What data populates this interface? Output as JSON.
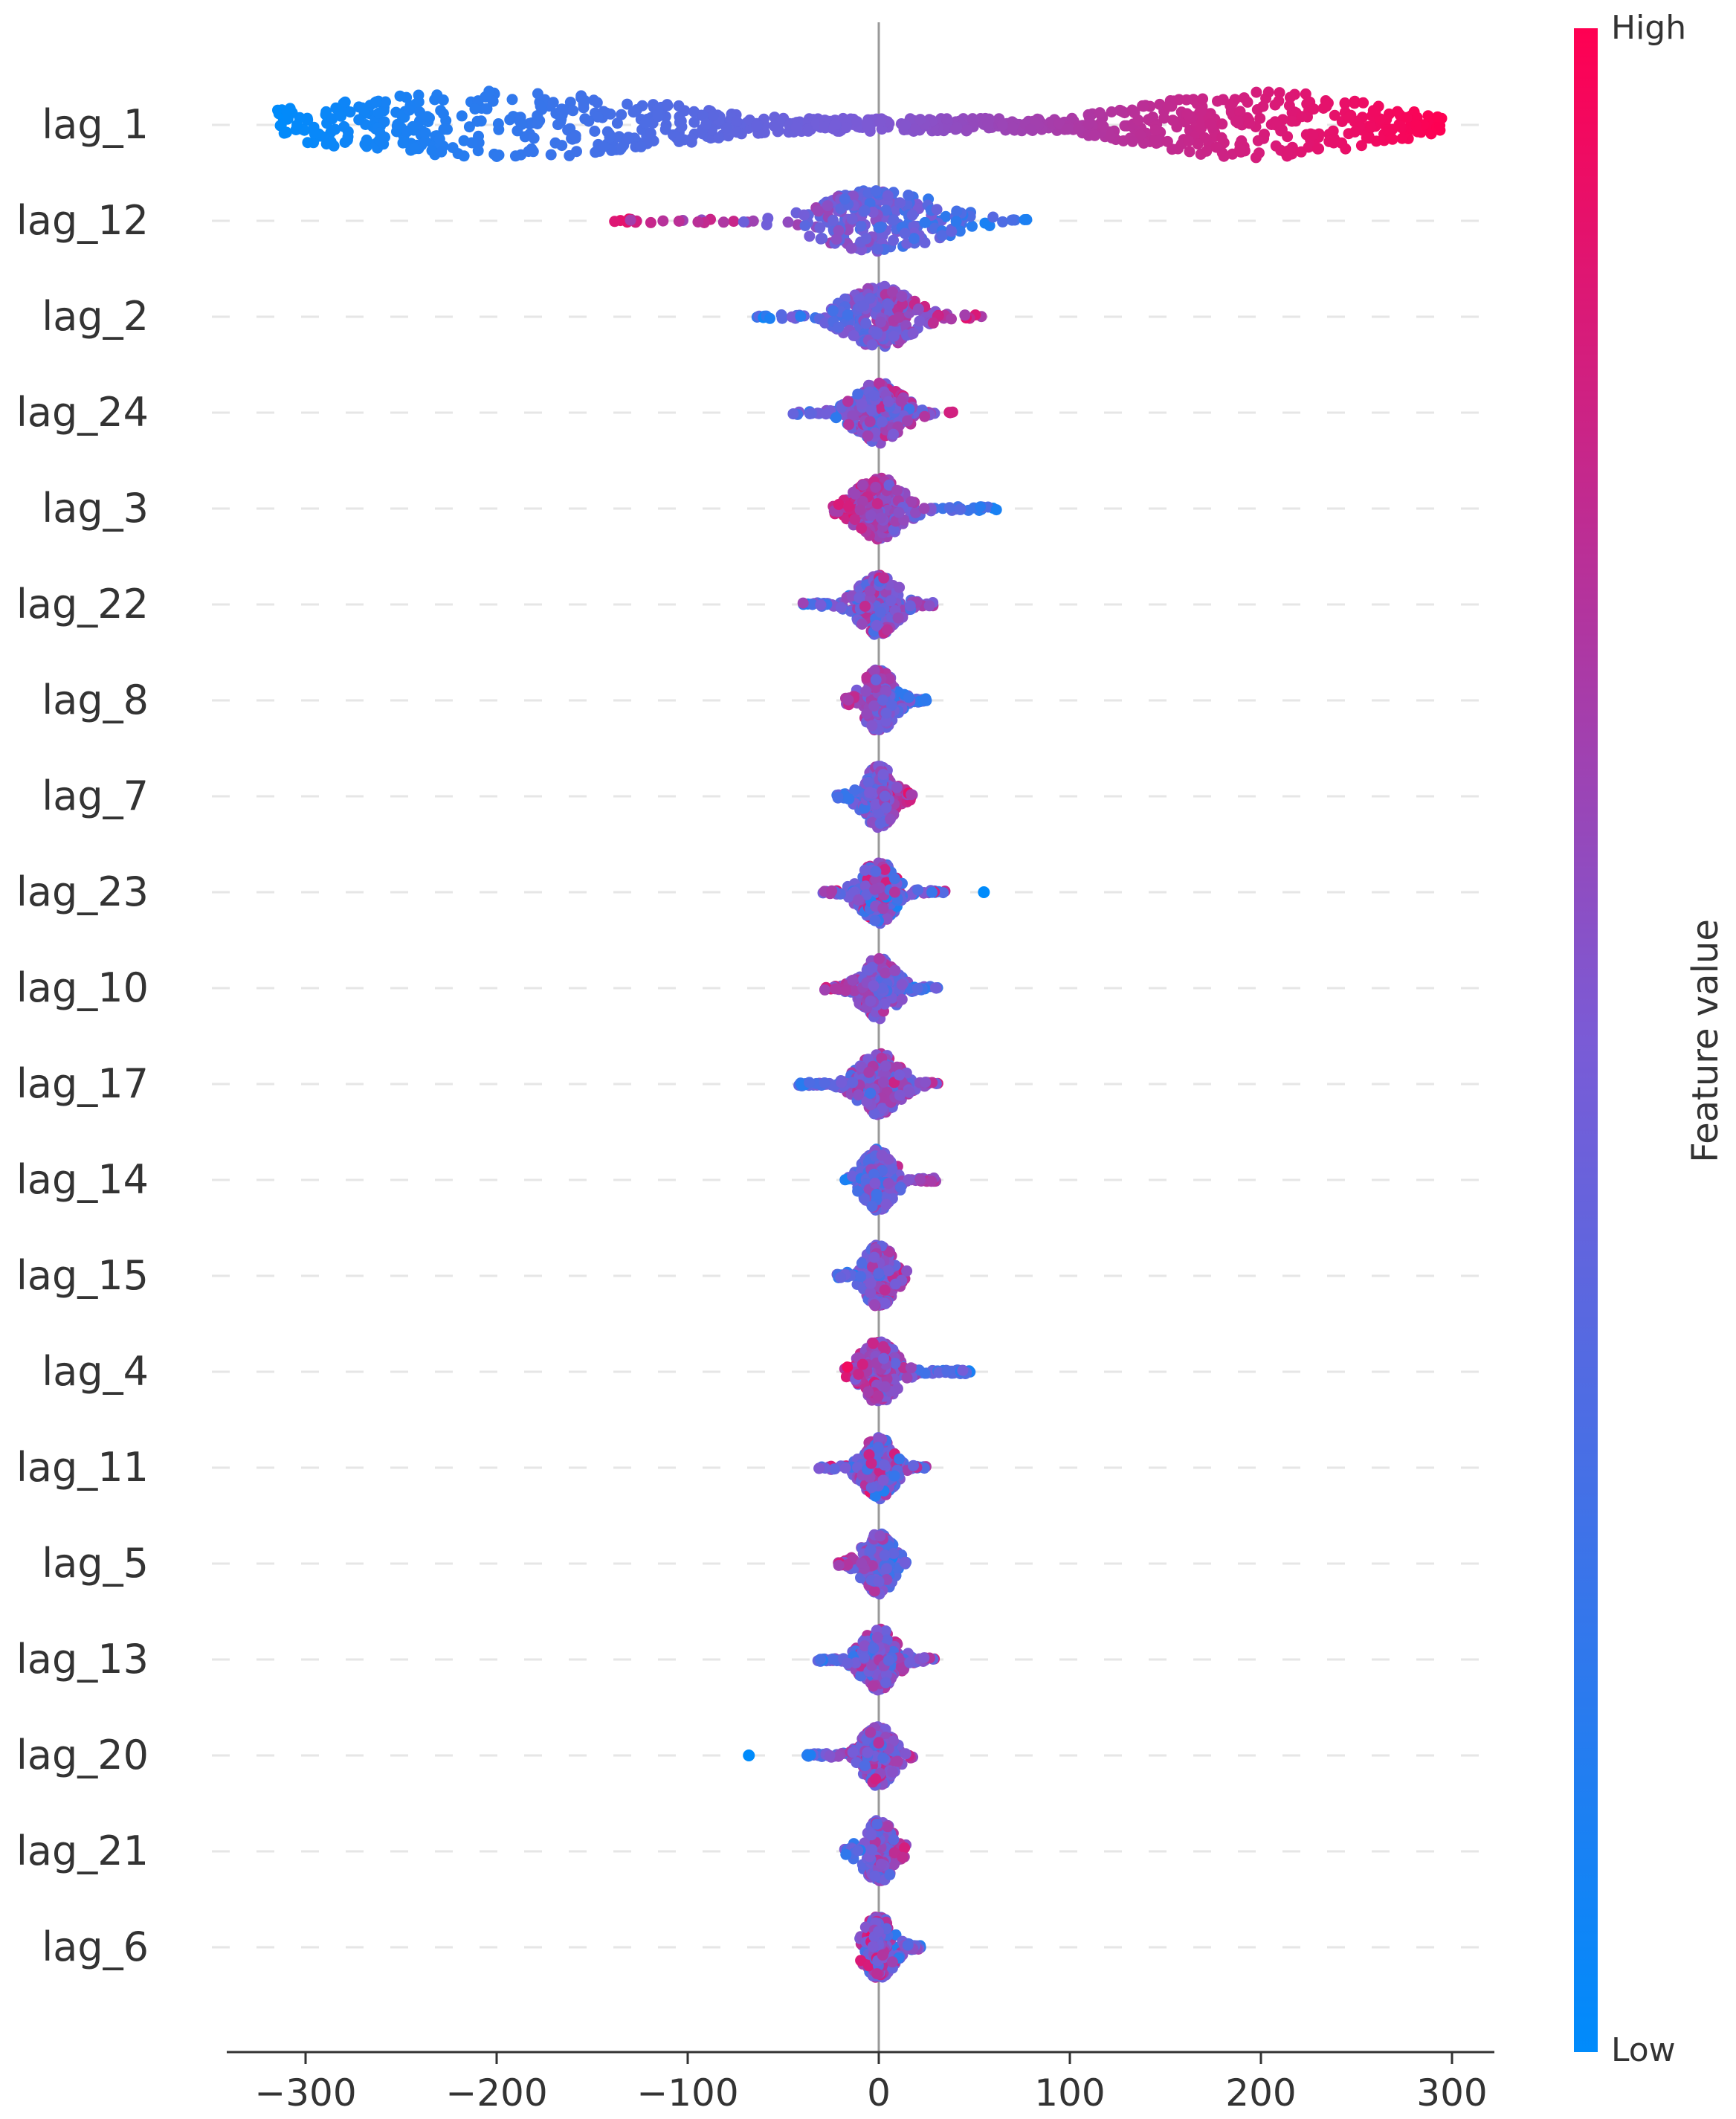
{
  "chart_data": {
    "type": "scatter",
    "subtype": "shap-beeswarm",
    "x": {
      "range": [
        -345,
        325
      ],
      "ticks": [
        -300,
        -200,
        -100,
        0,
        100,
        200,
        300
      ],
      "tick_labels": [
        "−300",
        "−200",
        "−100",
        "0",
        "100",
        "200",
        "300"
      ],
      "label": ""
    },
    "colorbar": {
      "label": "Feature value",
      "high_label": "High",
      "low_label": "Low",
      "low_color": "#008bfb",
      "high_color": "#ff0052"
    },
    "features": [
      {
        "name": "lag_1",
        "min": -315,
        "max": 295,
        "corr": 1.0,
        "outliers": []
      },
      {
        "name": "lag_12",
        "min": -140,
        "max": 78,
        "corr": -0.9,
        "outliers": []
      },
      {
        "name": "lag_2",
        "min": -65,
        "max": 55,
        "corr": 0.85,
        "outliers": []
      },
      {
        "name": "lag_24",
        "min": -45,
        "max": 40,
        "corr": 0.5,
        "outliers": []
      },
      {
        "name": "lag_3",
        "min": -25,
        "max": 62,
        "corr": -0.85,
        "outliers": []
      },
      {
        "name": "lag_22",
        "min": -40,
        "max": 30,
        "corr": 0.4,
        "outliers": []
      },
      {
        "name": "lag_8",
        "min": -18,
        "max": 25,
        "corr": -0.6,
        "outliers": []
      },
      {
        "name": "lag_7",
        "min": -22,
        "max": 18,
        "corr": 0.8,
        "outliers": []
      },
      {
        "name": "lag_23",
        "min": -30,
        "max": 35,
        "corr": -0.2,
        "outliers": [
          55
        ]
      },
      {
        "name": "lag_10",
        "min": -30,
        "max": 32,
        "corr": -0.6,
        "outliers": []
      },
      {
        "name": "lag_17",
        "min": -42,
        "max": 32,
        "corr": 0.6,
        "outliers": []
      },
      {
        "name": "lag_14",
        "min": -18,
        "max": 30,
        "corr": 0.6,
        "outliers": []
      },
      {
        "name": "lag_15",
        "min": -22,
        "max": 15,
        "corr": 0.6,
        "outliers": []
      },
      {
        "name": "lag_4",
        "min": -18,
        "max": 48,
        "corr": -0.7,
        "outliers": []
      },
      {
        "name": "lag_11",
        "min": -32,
        "max": 25,
        "corr": -0.3,
        "outliers": []
      },
      {
        "name": "lag_5",
        "min": -22,
        "max": 15,
        "corr": -0.6,
        "outliers": []
      },
      {
        "name": "lag_13",
        "min": -32,
        "max": 30,
        "corr": 0.5,
        "outliers": []
      },
      {
        "name": "lag_20",
        "min": -38,
        "max": 18,
        "corr": 0.4,
        "outliers": [
          -68
        ]
      },
      {
        "name": "lag_21",
        "min": -18,
        "max": 15,
        "corr": 0.6,
        "outliers": []
      },
      {
        "name": "lag_6",
        "min": -10,
        "max": 22,
        "corr": -0.3,
        "outliers": []
      }
    ]
  }
}
